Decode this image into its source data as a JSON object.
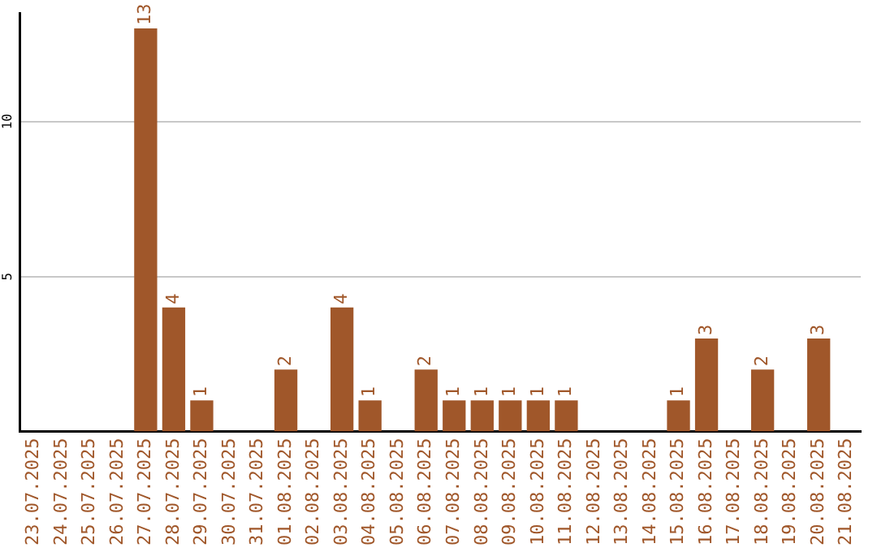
{
  "chart_data": {
    "type": "bar",
    "categories": [
      "23.07.2025",
      "24.07.2025",
      "25.07.2025",
      "26.07.2025",
      "27.07.2025",
      "28.07.2025",
      "29.07.2025",
      "30.07.2025",
      "31.07.2025",
      "01.08.2025",
      "02.08.2025",
      "03.08.2025",
      "04.08.2025",
      "05.08.2025",
      "06.08.2025",
      "07.08.2025",
      "08.08.2025",
      "09.08.2025",
      "10.08.2025",
      "11.08.2025",
      "12.08.2025",
      "13.08.2025",
      "14.08.2025",
      "15.08.2025",
      "16.08.2025",
      "17.08.2025",
      "18.08.2025",
      "19.08.2025",
      "20.08.2025",
      "21.08.2025"
    ],
    "values": [
      null,
      null,
      null,
      null,
      13,
      4,
      1,
      null,
      null,
      2,
      null,
      4,
      1,
      null,
      2,
      1,
      1,
      1,
      1,
      1,
      null,
      null,
      null,
      1,
      3,
      null,
      2,
      null,
      3,
      null
    ],
    "color": "#a0572a",
    "ylim": [
      0,
      13.5
    ],
    "yticks": [
      5,
      10
    ],
    "grid": "y",
    "data_labels": true,
    "legend": false
  }
}
